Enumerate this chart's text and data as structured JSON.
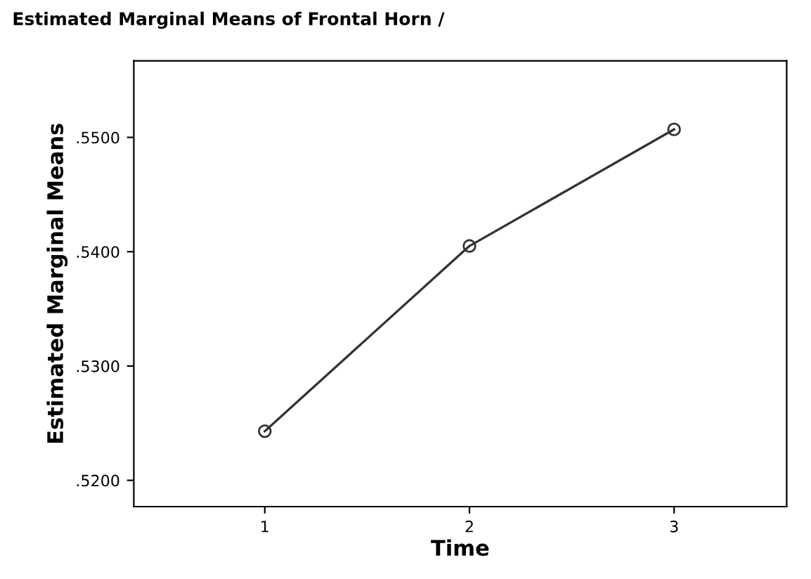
{
  "chart_data": {
    "type": "line",
    "title": "Estimated Marginal Means of Frontal Horn /",
    "xlabel": "Time",
    "ylabel": "Estimated Marginal Means",
    "x": [
      1,
      2,
      3
    ],
    "series": [
      {
        "color": "#333333",
        "values": [
          0.5243,
          0.5405,
          0.5507
        ]
      }
    ],
    "xlim": [
      0.36,
      3.55
    ],
    "xticks": [
      1,
      2,
      3
    ],
    "ylim": [
      0.5177,
      0.5567
    ],
    "yticks": [
      {
        "value": 0.52,
        "label": ".5200"
      },
      {
        "value": 0.53,
        "label": ".5300"
      },
      {
        "value": 0.54,
        "label": ".5400"
      },
      {
        "value": 0.55,
        "label": ".5500"
      }
    ],
    "marker": "circle",
    "line_style": "solid",
    "grid": false,
    "legend": false
  }
}
